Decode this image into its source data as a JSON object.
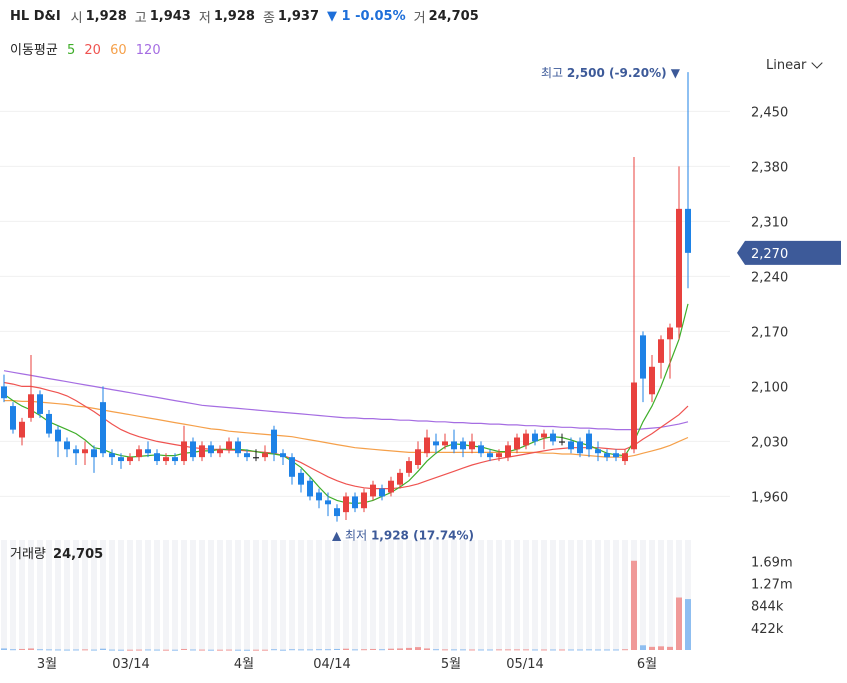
{
  "header": {
    "name": "HL D&I",
    "open_label": "시",
    "open": "1,928",
    "high_label": "고",
    "high": "1,943",
    "low_label": "저",
    "low": "1,928",
    "close_label": "종",
    "close": "1,937",
    "change": "▼ 1 -0.05%",
    "volume_label": "거",
    "volume": "24,705"
  },
  "ma_legend": {
    "title": "이동평균",
    "p5": "5",
    "p20": "20",
    "p60": "60",
    "p120": "120"
  },
  "scale_selector": "Linear",
  "volume_title": {
    "label": "거래량",
    "value": "24,705"
  },
  "colors": {
    "up": "#e8413e",
    "down": "#1e82e6",
    "ma5": "#3fae2a",
    "ma20": "#ef5350",
    "ma60": "#f5a04a",
    "ma120": "#a56de2",
    "price_tag": "#3d5a99"
  },
  "chart_data": {
    "type": "candlestick",
    "y_ticks": [
      "2,450",
      "2,380",
      "2,310",
      "2,240",
      "2,170",
      "2,100",
      "2,030",
      "1,960"
    ],
    "ylim": [
      1930,
      2490
    ],
    "volume_ticks": [
      "1.69m",
      "1.27m",
      "844k",
      "422k"
    ],
    "volume_ylim": [
      0,
      2000000
    ],
    "x_ticks": [
      "3월",
      "03/14",
      "4월",
      "04/14",
      "5월",
      "05/14",
      "6월"
    ],
    "current_price": "2,270",
    "high_annotation": {
      "label": "최고",
      "value": "2,500 (-9.20%)",
      "price": 2500
    },
    "low_annotation": {
      "label": "최저",
      "value": "1,928 (17.74%)",
      "price": 1928
    },
    "candles": [
      [
        2100,
        2085,
        2115,
        2080
      ],
      [
        2075,
        2045,
        2080,
        2040
      ],
      [
        2035,
        2055,
        2060,
        2025
      ],
      [
        2060,
        2090,
        2140,
        2055
      ],
      [
        2090,
        2065,
        2095,
        2060
      ],
      [
        2065,
        2040,
        2070,
        2035
      ],
      [
        2045,
        2030,
        2050,
        2010
      ],
      [
        2030,
        2020,
        2035,
        2010
      ],
      [
        2020,
        2015,
        2025,
        2000
      ],
      [
        2015,
        2020,
        2030,
        2000
      ],
      [
        2020,
        2010,
        2025,
        1990
      ],
      [
        2080,
        2015,
        2100,
        2010
      ],
      [
        2015,
        2010,
        2020,
        2000
      ],
      [
        2010,
        2005,
        2015,
        1995
      ],
      [
        2005,
        2010,
        2015,
        2000
      ],
      [
        2010,
        2020,
        2025,
        2005
      ],
      [
        2020,
        2015,
        2030,
        2010
      ],
      [
        2015,
        2005,
        2020,
        2000
      ],
      [
        2005,
        2010,
        2015,
        2000
      ],
      [
        2010,
        2005,
        2015,
        2000
      ],
      [
        2005,
        2030,
        2050,
        2000
      ],
      [
        2030,
        2010,
        2035,
        2005
      ],
      [
        2010,
        2025,
        2030,
        2005
      ],
      [
        2025,
        2015,
        2030,
        2010
      ],
      [
        2015,
        2020,
        2025,
        2010
      ],
      [
        2020,
        2030,
        2035,
        2015
      ],
      [
        2030,
        2015,
        2035,
        2010
      ],
      [
        2015,
        2010,
        2020,
        2005
      ],
      [
        2010,
        2010,
        2020,
        2005
      ],
      [
        2010,
        2015,
        2025,
        2005
      ],
      [
        2045,
        2015,
        2050,
        2005
      ],
      [
        2015,
        2010,
        2020,
        2000
      ],
      [
        2010,
        1985,
        2015,
        1975
      ],
      [
        1990,
        1975,
        1995,
        1965
      ],
      [
        1980,
        1960,
        1985,
        1955
      ],
      [
        1965,
        1955,
        1970,
        1945
      ],
      [
        1955,
        1950,
        1965,
        1935
      ],
      [
        1945,
        1935,
        1950,
        1928
      ],
      [
        1940,
        1960,
        1965,
        1930
      ],
      [
        1960,
        1945,
        1965,
        1940
      ],
      [
        1945,
        1965,
        1970,
        1940
      ],
      [
        1960,
        1975,
        1980,
        1955
      ],
      [
        1970,
        1960,
        1975,
        1955
      ],
      [
        1965,
        1980,
        1985,
        1960
      ],
      [
        1975,
        1990,
        1995,
        1970
      ],
      [
        1990,
        2005,
        2010,
        1985
      ],
      [
        2000,
        2020,
        2030,
        1995
      ],
      [
        2015,
        2035,
        2045,
        2010
      ],
      [
        2030,
        2025,
        2040,
        2015
      ],
      [
        2025,
        2030,
        2040,
        2020
      ],
      [
        2030,
        2020,
        2045,
        2015
      ],
      [
        2030,
        2020,
        2035,
        2010
      ],
      [
        2020,
        2030,
        2040,
        2015
      ],
      [
        2025,
        2015,
        2030,
        2010
      ],
      [
        2015,
        2010,
        2020,
        2005
      ],
      [
        2010,
        2015,
        2020,
        2005
      ],
      [
        2010,
        2025,
        2030,
        2005
      ],
      [
        2020,
        2035,
        2040,
        2015
      ],
      [
        2025,
        2040,
        2045,
        2020
      ],
      [
        2040,
        2030,
        2045,
        2025
      ],
      [
        2035,
        2040,
        2045,
        2020
      ],
      [
        2040,
        2030,
        2045,
        2025
      ],
      [
        2030,
        2030,
        2040,
        2025
      ],
      [
        2030,
        2020,
        2035,
        2015
      ],
      [
        2030,
        2015,
        2035,
        2010
      ],
      [
        2040,
        2020,
        2045,
        2010
      ],
      [
        2020,
        2015,
        2030,
        2005
      ],
      [
        2015,
        2010,
        2020,
        2005
      ],
      [
        2015,
        2010,
        2020,
        2005
      ],
      [
        2005,
        2015,
        2020,
        2000
      ],
      [
        2020,
        2105,
        2392,
        2015
      ],
      [
        2165,
        2110,
        2170,
        2080
      ],
      [
        2090,
        2125,
        2140,
        2080
      ],
      [
        2130,
        2160,
        2165,
        2110
      ],
      [
        2160,
        2175,
        2180,
        2110
      ],
      [
        2175,
        2326,
        2380,
        2160
      ],
      [
        2326,
        2270,
        2500,
        2225
      ]
    ],
    "volumes": [
      30000,
      15000,
      20000,
      30000,
      15000,
      12000,
      10000,
      8000,
      10000,
      12000,
      8000,
      25000,
      8000,
      6000,
      6000,
      8000,
      10000,
      8000,
      6000,
      6000,
      20000,
      10000,
      8000,
      6000,
      6000,
      8000,
      6000,
      5000,
      6000,
      6000,
      15000,
      6000,
      15000,
      12000,
      12000,
      15000,
      15000,
      20000,
      25000,
      12000,
      15000,
      20000,
      15000,
      25000,
      30000,
      40000,
      55000,
      30000,
      15000,
      12000,
      12000,
      12000,
      10000,
      10000,
      10000,
      12000,
      12000,
      12000,
      12000,
      10000,
      10000,
      10000,
      10000,
      10000,
      10000,
      12000,
      10000,
      10000,
      10000,
      15000,
      1700000,
      90000,
      60000,
      70000,
      60000,
      1000000,
      970000
    ],
    "ma5": [
      2090,
      2082,
      2075,
      2070,
      2063,
      2055,
      2050,
      2045,
      2040,
      2032,
      2022,
      2020,
      2015,
      2012,
      2010,
      2011,
      2012,
      2013,
      2012,
      2012,
      2015,
      2016,
      2018,
      2018,
      2020,
      2020,
      2020,
      2019,
      2017,
      2015,
      2014,
      2012,
      2005,
      1997,
      1985,
      1972,
      1960,
      1955,
      1952,
      1951,
      1952,
      1955,
      1960,
      1965,
      1972,
      1980,
      1992,
      2005,
      2015,
      2023,
      2027,
      2026,
      2024,
      2023,
      2020,
      2017,
      2017,
      2020,
      2025,
      2030,
      2034,
      2036,
      2035,
      2032,
      2028,
      2025,
      2020,
      2015,
      2013,
      2012,
      2030,
      2055,
      2075,
      2100,
      2130,
      2160,
      2205
    ],
    "ma20": [
      2105,
      2103,
      2100,
      2100,
      2098,
      2095,
      2092,
      2088,
      2082,
      2075,
      2068,
      2060,
      2052,
      2045,
      2040,
      2036,
      2033,
      2030,
      2028,
      2026,
      2024,
      2022,
      2021,
      2020,
      2020,
      2019,
      2019,
      2018,
      2017,
      2016,
      2015,
      2012,
      2008,
      2003,
      1997,
      1991,
      1985,
      1980,
      1976,
      1973,
      1971,
      1970,
      1970,
      1970,
      1971,
      1973,
      1976,
      1980,
      1984,
      1988,
      1992,
      1996,
      2000,
      2003,
      2006,
      2008,
      2010,
      2012,
      2014,
      2016,
      2018,
      2020,
      2021,
      2022,
      2022,
      2022,
      2022,
      2021,
      2020,
      2020,
      2025,
      2033,
      2040,
      2048,
      2056,
      2064,
      2075
    ],
    "ma60": [
      2082,
      2082,
      2081,
      2081,
      2080,
      2079,
      2078,
      2077,
      2075,
      2074,
      2072,
      2070,
      2068,
      2066,
      2064,
      2062,
      2060,
      2058,
      2056,
      2054,
      2052,
      2050,
      2048,
      2046,
      2045,
      2043,
      2042,
      2041,
      2040,
      2039,
      2038,
      2037,
      2036,
      2034,
      2032,
      2030,
      2028,
      2026,
      2024,
      2022,
      2021,
      2020,
      2019,
      2018,
      2017,
      2016,
      2016,
      2016,
      2016,
      2016,
      2016,
      2016,
      2016,
      2016,
      2016,
      2016,
      2016,
      2016,
      2016,
      2016,
      2015,
      2015,
      2014,
      2014,
      2013,
      2012,
      2011,
      2010,
      2010,
      2010,
      2012,
      2015,
      2018,
      2021,
      2025,
      2030,
      2035
    ],
    "ma120": [
      2120,
      2118,
      2116,
      2114,
      2112,
      2110,
      2108,
      2106,
      2104,
      2102,
      2100,
      2098,
      2096,
      2094,
      2092,
      2090,
      2088,
      2086,
      2084,
      2082,
      2080,
      2078,
      2076,
      2075,
      2074,
      2073,
      2072,
      2071,
      2070,
      2069,
      2068,
      2067,
      2066,
      2065,
      2064,
      2063,
      2062,
      2061,
      2060,
      2060,
      2059,
      2059,
      2058,
      2058,
      2057,
      2057,
      2056,
      2056,
      2055,
      2055,
      2054,
      2054,
      2053,
      2053,
      2052,
      2052,
      2051,
      2051,
      2050,
      2050,
      2049,
      2049,
      2048,
      2048,
      2047,
      2047,
      2046,
      2046,
      2045,
      2045,
      2045,
      2046,
      2047,
      2048,
      2050,
      2052,
      2055
    ]
  }
}
